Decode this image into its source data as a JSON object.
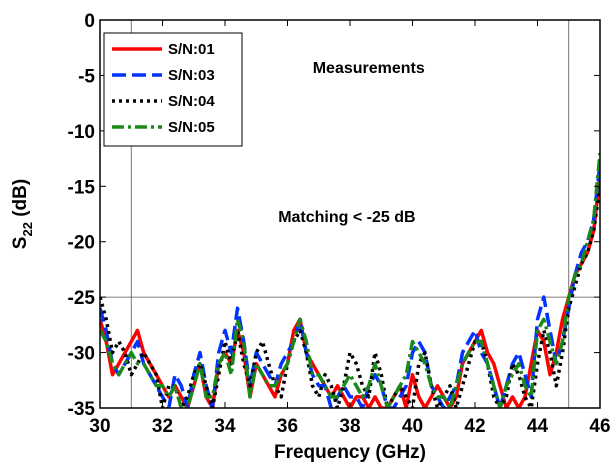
{
  "chart_data": {
    "type": "line",
    "title": "",
    "xlabel": "Frequency (GHz)",
    "ylabel_base": "S",
    "ylabel_sub": "22",
    "ylabel_rest": " (dB)",
    "xlim": [
      30,
      46
    ],
    "ylim": [
      -35,
      0
    ],
    "xticks": [
      30,
      32,
      34,
      36,
      38,
      40,
      42,
      44,
      46
    ],
    "yticks": [
      0,
      -5,
      -10,
      -15,
      -20,
      -25,
      -30,
      -35
    ],
    "grid": false,
    "legend_position": "top-left",
    "annotations": [
      {
        "text": "Measurements",
        "x": 38.6,
        "y": -4.8
      },
      {
        "text": "Matching < -25 dB",
        "x": 37.9,
        "y": -18.2
      }
    ],
    "reference_lines": {
      "horizontal": [
        -25
      ],
      "vertical": [
        31,
        45
      ]
    },
    "series": [
      {
        "name": "S/N:01",
        "color": "#ff0000",
        "dash": "solid",
        "x": [
          30.0,
          30.2,
          30.4,
          30.6,
          30.8,
          31.0,
          31.2,
          31.4,
          31.6,
          31.8,
          32.0,
          32.2,
          32.4,
          32.6,
          32.8,
          33.0,
          33.2,
          33.4,
          33.6,
          33.8,
          34.0,
          34.2,
          34.4,
          34.6,
          34.8,
          35.0,
          35.2,
          35.4,
          35.6,
          35.8,
          36.0,
          36.2,
          36.4,
          36.6,
          36.8,
          37.0,
          37.2,
          37.4,
          37.6,
          37.8,
          38.0,
          38.2,
          38.4,
          38.6,
          38.8,
          39.0,
          39.2,
          39.4,
          39.6,
          39.8,
          40.0,
          40.2,
          40.4,
          40.6,
          40.8,
          41.0,
          41.2,
          41.4,
          41.6,
          41.8,
          42.0,
          42.2,
          42.4,
          42.6,
          42.8,
          43.0,
          43.2,
          43.4,
          43.6,
          43.8,
          44.0,
          44.2,
          44.4,
          44.6,
          44.8,
          45.0,
          45.2,
          45.4,
          45.6,
          45.8,
          46.0
        ],
        "y": [
          -27,
          -29,
          -32,
          -31,
          -30,
          -29,
          -28,
          -30,
          -31,
          -32,
          -33,
          -34,
          -33,
          -34,
          -35,
          -33,
          -31,
          -34,
          -35,
          -31,
          -30,
          -31,
          -28,
          -30,
          -34,
          -31,
          -32,
          -33,
          -34,
          -32,
          -31,
          -28,
          -27,
          -30,
          -31,
          -32,
          -33,
          -34,
          -33,
          -34,
          -35,
          -34,
          -34,
          -35,
          -34,
          -35,
          -35,
          -34,
          -33,
          -35,
          -32,
          -34,
          -35,
          -34,
          -33,
          -34,
          -35,
          -34,
          -31,
          -30,
          -29,
          -28,
          -30,
          -31,
          -33,
          -35,
          -34,
          -35,
          -34,
          -31,
          -28,
          -29,
          -32,
          -30,
          -27,
          -25,
          -23,
          -22,
          -21,
          -19,
          -14
        ]
      },
      {
        "name": "S/N:03",
        "color": "#0033ff",
        "dash": "dashed",
        "x": [
          30.0,
          30.2,
          30.4,
          30.6,
          30.8,
          31.0,
          31.2,
          31.4,
          31.6,
          31.8,
          32.0,
          32.2,
          32.4,
          32.6,
          32.8,
          33.0,
          33.2,
          33.4,
          33.6,
          33.8,
          34.0,
          34.2,
          34.4,
          34.6,
          34.8,
          35.0,
          35.2,
          35.4,
          35.6,
          35.8,
          36.0,
          36.2,
          36.4,
          36.6,
          36.8,
          37.0,
          37.2,
          37.4,
          37.6,
          37.8,
          38.0,
          38.2,
          38.4,
          38.6,
          38.8,
          39.0,
          39.2,
          39.4,
          39.6,
          39.8,
          40.0,
          40.2,
          40.4,
          40.6,
          40.8,
          41.0,
          41.2,
          41.4,
          41.6,
          41.8,
          42.0,
          42.2,
          42.4,
          42.6,
          42.8,
          43.0,
          43.2,
          43.4,
          43.6,
          43.8,
          44.0,
          44.2,
          44.4,
          44.6,
          44.8,
          45.0,
          45.2,
          45.4,
          45.6,
          45.8,
          46.0
        ],
        "y": [
          -26,
          -28,
          -31,
          -32,
          -31,
          -30,
          -29,
          -31,
          -32,
          -33,
          -34,
          -35,
          -32,
          -33,
          -35,
          -32,
          -30,
          -33,
          -35,
          -30,
          -28,
          -30,
          -26,
          -29,
          -33,
          -30,
          -31,
          -32,
          -33,
          -31,
          -30,
          -29,
          -27,
          -30,
          -32,
          -33,
          -33,
          -35,
          -34,
          -33,
          -34,
          -34,
          -35,
          -33,
          -32,
          -33,
          -35,
          -35,
          -34,
          -33,
          -30,
          -29,
          -30,
          -33,
          -34,
          -35,
          -34,
          -33,
          -30,
          -29,
          -28,
          -30,
          -31,
          -33,
          -35,
          -33,
          -31,
          -30,
          -32,
          -34,
          -27,
          -25,
          -28,
          -31,
          -29,
          -26,
          -23,
          -21,
          -20,
          -18,
          -13
        ]
      },
      {
        "name": "S/N:04",
        "color": "#000000",
        "dash": "dotted",
        "x": [
          30.0,
          30.2,
          30.4,
          30.6,
          30.8,
          31.0,
          31.2,
          31.4,
          31.6,
          31.8,
          32.0,
          32.2,
          32.4,
          32.6,
          32.8,
          33.0,
          33.2,
          33.4,
          33.6,
          33.8,
          34.0,
          34.2,
          34.4,
          34.6,
          34.8,
          35.0,
          35.2,
          35.4,
          35.6,
          35.8,
          36.0,
          36.2,
          36.4,
          36.6,
          36.8,
          37.0,
          37.2,
          37.4,
          37.6,
          37.8,
          38.0,
          38.2,
          38.4,
          38.6,
          38.8,
          39.0,
          39.2,
          39.4,
          39.6,
          39.8,
          40.0,
          40.2,
          40.4,
          40.6,
          40.8,
          41.0,
          41.2,
          41.4,
          41.6,
          41.8,
          42.0,
          42.2,
          42.4,
          42.6,
          42.8,
          43.0,
          43.2,
          43.4,
          43.6,
          43.8,
          44.0,
          44.2,
          44.4,
          44.6,
          44.8,
          45.0,
          45.2,
          45.4,
          45.6,
          45.8,
          46.0
        ],
        "y": [
          -25,
          -27,
          -30,
          -29,
          -30,
          -32,
          -31,
          -30,
          -31,
          -32,
          -35,
          -33,
          -33,
          -35,
          -34,
          -32,
          -31,
          -33,
          -35,
          -32,
          -29,
          -31,
          -28,
          -31,
          -33,
          -30,
          -29,
          -31,
          -33,
          -34,
          -31,
          -29,
          -28,
          -30,
          -33,
          -34,
          -32,
          -33,
          -35,
          -33,
          -30,
          -31,
          -33,
          -34,
          -30,
          -32,
          -35,
          -34,
          -33,
          -34,
          -35,
          -31,
          -30,
          -33,
          -35,
          -34,
          -33,
          -35,
          -33,
          -31,
          -29,
          -29,
          -31,
          -34,
          -35,
          -34,
          -31,
          -32,
          -34,
          -35,
          -31,
          -28,
          -30,
          -33,
          -30,
          -26,
          -24,
          -22,
          -21,
          -19,
          -15
        ]
      },
      {
        "name": "S/N:05",
        "color": "#1a8a1a",
        "dash": "dashdot",
        "x": [
          30.0,
          30.2,
          30.4,
          30.6,
          30.8,
          31.0,
          31.2,
          31.4,
          31.6,
          31.8,
          32.0,
          32.2,
          32.4,
          32.6,
          32.8,
          33.0,
          33.2,
          33.4,
          33.6,
          33.8,
          34.0,
          34.2,
          34.4,
          34.6,
          34.8,
          35.0,
          35.2,
          35.4,
          35.6,
          35.8,
          36.0,
          36.2,
          36.4,
          36.6,
          36.8,
          37.0,
          37.2,
          37.4,
          37.6,
          37.8,
          38.0,
          38.2,
          38.4,
          38.6,
          38.8,
          39.0,
          39.2,
          39.4,
          39.6,
          39.8,
          40.0,
          40.2,
          40.4,
          40.6,
          40.8,
          41.0,
          41.2,
          41.4,
          41.6,
          41.8,
          42.0,
          42.2,
          42.4,
          42.6,
          42.8,
          43.0,
          43.2,
          43.4,
          43.6,
          43.8,
          44.0,
          44.2,
          44.4,
          44.6,
          44.8,
          45.0,
          45.2,
          45.4,
          45.6,
          45.8,
          46.0
        ],
        "y": [
          -28,
          -29,
          -31,
          -32,
          -31,
          -30,
          -31,
          -31,
          -32,
          -33,
          -33,
          -34,
          -33,
          -35,
          -35,
          -33,
          -31,
          -34,
          -34,
          -31,
          -30,
          -32,
          -27,
          -29,
          -34,
          -31,
          -32,
          -33,
          -33,
          -32,
          -31,
          -29,
          -27,
          -29,
          -32,
          -32,
          -33,
          -34,
          -34,
          -33,
          -32,
          -33,
          -34,
          -33,
          -31,
          -33,
          -35,
          -34,
          -33,
          -32,
          -29,
          -30,
          -31,
          -33,
          -34,
          -34,
          -35,
          -33,
          -31,
          -30,
          -29,
          -29,
          -31,
          -33,
          -35,
          -33,
          -32,
          -31,
          -33,
          -34,
          -28,
          -27,
          -29,
          -31,
          -29,
          -25,
          -23,
          -22,
          -20,
          -18,
          -12
        ]
      }
    ]
  }
}
